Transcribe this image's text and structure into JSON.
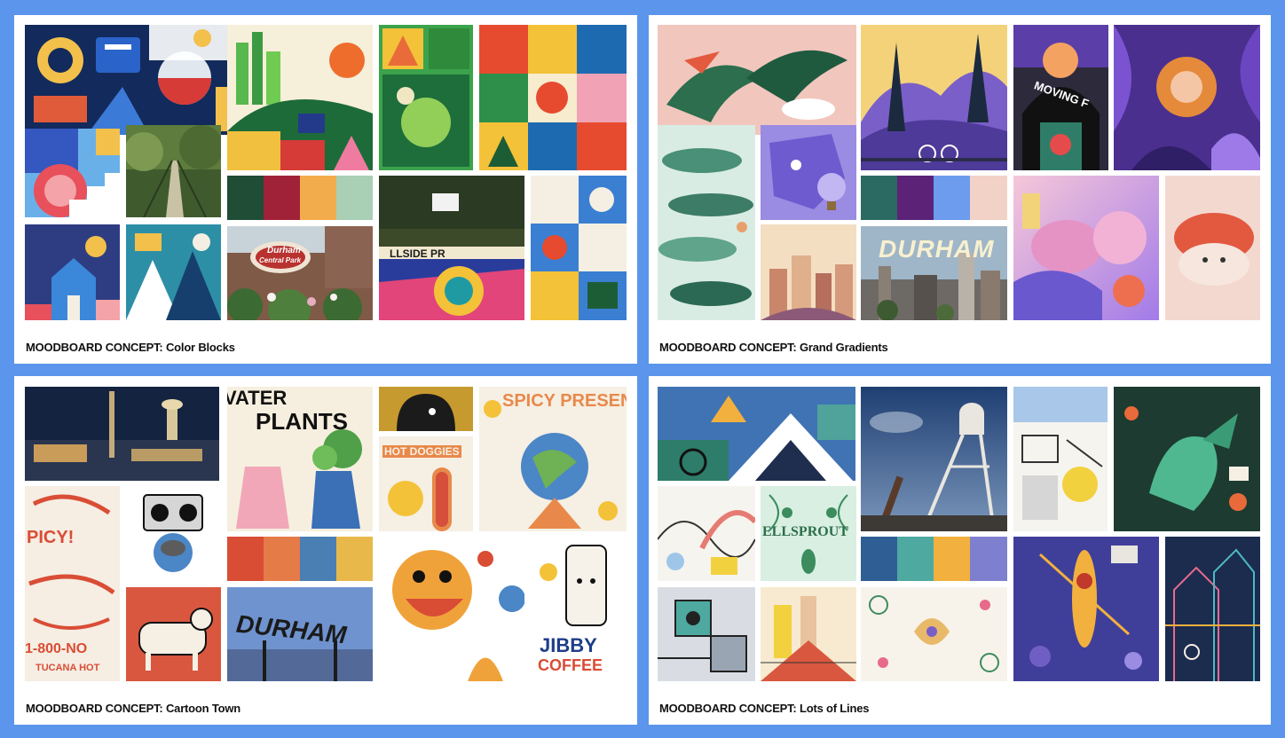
{
  "boards": [
    {
      "caption": "MOODBOARD CONCEPT: Color Blocks",
      "palette": [
        "#1f4d35",
        "#a02238",
        "#f3ac4c",
        "#a9cfb5"
      ],
      "tile_text": {
        "park": "Durham",
        "park2": "Central Park",
        "court": "LLSIDE PR"
      }
    },
    {
      "caption": "MOODBOARD CONCEPT: Grand Gradients",
      "palette": [
        "#2b6a63",
        "#5b2277",
        "#6d9cee",
        "#f2d2c7"
      ],
      "tile_text": {
        "movin": "MOVING F",
        "city": "DURHAM"
      }
    },
    {
      "caption": "MOODBOARD CONCEPT: Cartoon Town",
      "palette": [
        "#d94d35",
        "#e57b47",
        "#4a7fb4",
        "#e8b94a"
      ],
      "tile_text": {
        "plants1": "VATER",
        "plants2": "PLANTS",
        "hot": "HOT DOGGIES",
        "spicy": "SPICY PRESENT",
        "spicy2": "PICY!",
        "tucana": "1-800-NO",
        "tucana2": "TUCANA HOT",
        "sign": "DURHAM",
        "jibby1": "JIBBY",
        "jibby2": "COFFEE"
      }
    },
    {
      "caption": "MOODBOARD CONCEPT: Lots of Lines",
      "palette": [
        "#2f5e95",
        "#4ea9a0",
        "#f2b03e",
        "#7f7fcf"
      ],
      "tile_text": {
        "sprout": "ELLSPROUT"
      }
    }
  ]
}
